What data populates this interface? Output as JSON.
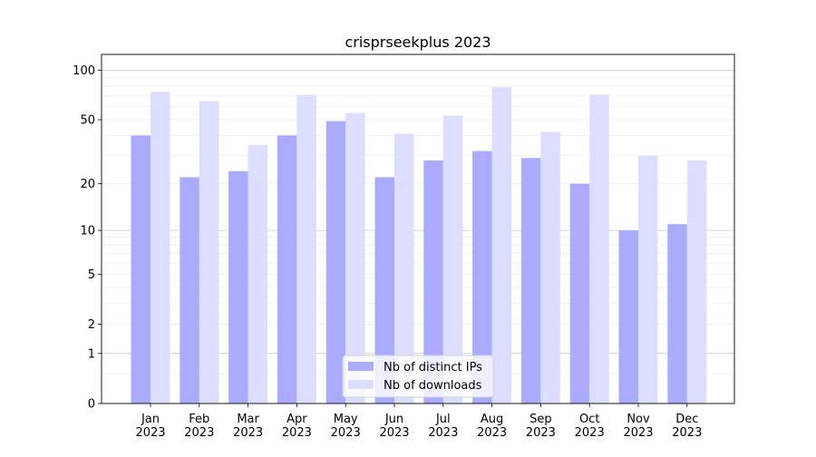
{
  "chart_data": {
    "type": "bar",
    "title": "crisprseekplus 2023",
    "xlabel": "",
    "ylabel": "",
    "yscale": "log(1+y)",
    "yticks": [
      0,
      1,
      2,
      5,
      10,
      20,
      50,
      100
    ],
    "ylim": [
      0,
      120
    ],
    "grid": true,
    "legend_position": "lower center",
    "categories": [
      "Jan\n2023",
      "Feb\n2023",
      "Mar\n2023",
      "Apr\n2023",
      "May\n2023",
      "Jun\n2023",
      "Jul\n2023",
      "Aug\n2023",
      "Sep\n2023",
      "Oct\n2023",
      "Nov\n2023",
      "Dec\n2023"
    ],
    "series": [
      {
        "name": "Nb of distinct IPs",
        "color": "#aaaaff",
        "values": [
          40,
          22,
          24,
          40,
          49,
          22,
          28,
          32,
          29,
          20,
          10,
          11
        ]
      },
      {
        "name": "Nb of downloads",
        "color": "#ddddff",
        "values": [
          74,
          65,
          35,
          71,
          55,
          41,
          53,
          79,
          42,
          71,
          30,
          28
        ]
      }
    ]
  }
}
